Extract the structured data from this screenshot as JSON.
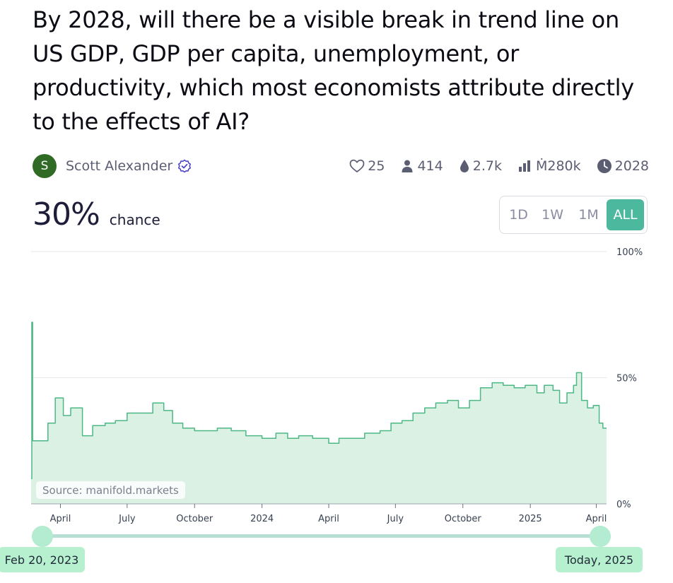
{
  "question": {
    "title": "By 2028, will there be a visible break in trend line on US GDP, GDP per capita, unemployment, or productivity, which most economists attribute directly to the effects of AI?"
  },
  "author": {
    "avatar_letter": "S",
    "name": "Scott Alexander",
    "verified_icon": "verified-badge-icon",
    "avatar_color": "#2f6b25"
  },
  "stats": {
    "likes": "25",
    "traders": "414",
    "liquidity": "2.7k",
    "volume": "Ṁ280k",
    "close": "2028"
  },
  "probability": {
    "value": "30%",
    "label": "chance"
  },
  "range": {
    "options": [
      "1D",
      "1W",
      "1M",
      "ALL"
    ],
    "selected": "ALL"
  },
  "chart_data": {
    "type": "area",
    "x_tick_labels": [
      "April",
      "July",
      "October",
      "2024",
      "April",
      "July",
      "October",
      "2025",
      "April"
    ],
    "y_tick_labels": [
      "100%",
      "50%",
      "0%"
    ],
    "ylim": [
      0,
      100
    ],
    "grid": "horizontal",
    "series": [
      {
        "points": [
          [
            "2023-02-20",
            10
          ],
          [
            "2023-02-21",
            72
          ],
          [
            "2023-02-22",
            25
          ],
          [
            "2023-03-05",
            25
          ],
          [
            "2023-03-15",
            32
          ],
          [
            "2023-03-25",
            42
          ],
          [
            "2023-04-05",
            35
          ],
          [
            "2023-04-15",
            38
          ],
          [
            "2023-05-01",
            27
          ],
          [
            "2023-05-15",
            31
          ],
          [
            "2023-06-01",
            32
          ],
          [
            "2023-06-15",
            33
          ],
          [
            "2023-07-01",
            36
          ],
          [
            "2023-07-15",
            36
          ],
          [
            "2023-08-01",
            36
          ],
          [
            "2023-08-05",
            40
          ],
          [
            "2023-08-20",
            37
          ],
          [
            "2023-09-01",
            32
          ],
          [
            "2023-09-15",
            30
          ],
          [
            "2023-10-01",
            29
          ],
          [
            "2023-10-15",
            29
          ],
          [
            "2023-11-01",
            30
          ],
          [
            "2023-11-20",
            29
          ],
          [
            "2023-12-10",
            27
          ],
          [
            "2024-01-01",
            26
          ],
          [
            "2024-01-20",
            28
          ],
          [
            "2024-02-05",
            26
          ],
          [
            "2024-02-20",
            27
          ],
          [
            "2024-03-10",
            26
          ],
          [
            "2024-04-01",
            24
          ],
          [
            "2024-04-15",
            26
          ],
          [
            "2024-05-01",
            26
          ],
          [
            "2024-05-20",
            28
          ],
          [
            "2024-06-10",
            29
          ],
          [
            "2024-06-25",
            32
          ],
          [
            "2024-07-10",
            33
          ],
          [
            "2024-07-25",
            36
          ],
          [
            "2024-08-10",
            38
          ],
          [
            "2024-08-25",
            40
          ],
          [
            "2024-09-10",
            41
          ],
          [
            "2024-09-25",
            38
          ],
          [
            "2024-10-10",
            41
          ],
          [
            "2024-10-25",
            46
          ],
          [
            "2024-11-10",
            48
          ],
          [
            "2024-11-25",
            47
          ],
          [
            "2024-12-10",
            46
          ],
          [
            "2024-12-25",
            47
          ],
          [
            "2025-01-10",
            44
          ],
          [
            "2025-01-20",
            47
          ],
          [
            "2025-02-01",
            45
          ],
          [
            "2025-02-10",
            40
          ],
          [
            "2025-02-20",
            44
          ],
          [
            "2025-03-01",
            47
          ],
          [
            "2025-03-05",
            52
          ],
          [
            "2025-03-12",
            41
          ],
          [
            "2025-03-20",
            38
          ],
          [
            "2025-03-28",
            39
          ],
          [
            "2025-04-05",
            32
          ],
          [
            "2025-04-10",
            30
          ],
          [
            "2025-04-15",
            30
          ]
        ]
      }
    ],
    "line_color": "#4cb884",
    "fill_color": "#dbf1e4"
  },
  "source": {
    "text": "Source: manifold.markets"
  },
  "slider": {
    "start_label": "Feb 20, 2023",
    "end_label": "Today, 2025"
  },
  "colors": {
    "accent": "#4cb89e",
    "handle": "#b3ecd0",
    "badge": "#b6f0cf"
  }
}
